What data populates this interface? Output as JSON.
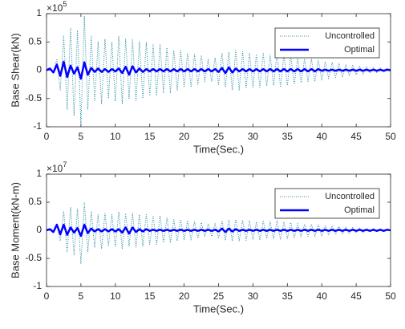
{
  "chart_data": [
    {
      "type": "line",
      "ylabel": "Base Shear(kN)",
      "xlabel": "Time(Sec.)",
      "y_exponent": {
        "base": "×10",
        "power": "5"
      },
      "xlim": [
        0,
        50
      ],
      "ylim": [
        -1,
        1
      ],
      "xticks": [
        0,
        5,
        10,
        15,
        20,
        25,
        30,
        35,
        40,
        45,
        50
      ],
      "yticks": [
        -1,
        -0.5,
        0,
        0.5,
        1
      ],
      "grid": false,
      "legend": "upper right",
      "x": [
        0,
        0.5,
        1,
        1.5,
        2,
        2.5,
        3,
        3.5,
        4,
        4.5,
        5,
        5.5,
        6,
        6.5,
        7,
        7.5,
        8,
        8.5,
        9,
        9.5,
        10,
        10.5,
        11,
        11.5,
        12,
        12.5,
        13,
        13.5,
        14,
        14.5,
        15,
        15.5,
        16,
        16.5,
        17,
        17.5,
        18,
        18.5,
        19,
        19.5,
        20,
        20.5,
        21,
        21.5,
        22,
        22.5,
        23,
        23.5,
        24,
        24.5,
        25,
        25.5,
        26,
        26.5,
        27,
        27.5,
        28,
        28.5,
        29,
        29.5,
        30,
        30.5,
        31,
        31.5,
        32,
        32.5,
        33,
        33.5,
        34,
        34.5,
        35,
        35.5,
        36,
        36.5,
        37,
        37.5,
        38,
        38.5,
        39,
        39.5,
        40,
        40.5,
        41,
        41.5,
        42,
        42.5,
        43,
        43.5,
        44,
        44.5,
        45,
        45.5,
        46,
        46.5,
        47,
        47.5,
        48,
        48.5,
        49,
        49.5,
        50
      ],
      "series": [
        {
          "name": "Uncontrolled",
          "color": "#2b8ea3",
          "linestyle": "dotted",
          "linewidth": 1,
          "values": [
            0,
            0.02,
            -0.05,
            0.2,
            -0.35,
            0.6,
            -0.7,
            0.75,
            -0.8,
            0.7,
            -0.95,
            0.95,
            -0.7,
            0.6,
            -0.55,
            0.5,
            -0.6,
            0.55,
            -0.5,
            0.5,
            -0.55,
            0.6,
            -0.6,
            0.55,
            -0.5,
            0.55,
            -0.55,
            0.5,
            -0.5,
            0.5,
            -0.45,
            0.45,
            -0.45,
            0.45,
            -0.4,
            0.4,
            -0.4,
            0.35,
            -0.35,
            0.35,
            -0.3,
            0.3,
            -0.3,
            0.28,
            -0.25,
            0.25,
            -0.2,
            0.2,
            -0.2,
            0.22,
            -0.25,
            0.3,
            -0.3,
            0.32,
            -0.35,
            0.35,
            -0.35,
            0.33,
            -0.32,
            0.3,
            -0.3,
            0.28,
            -0.3,
            0.3,
            -0.28,
            0.27,
            -0.27,
            0.3,
            -0.3,
            0.28,
            -0.27,
            0.25,
            -0.25,
            0.22,
            -0.22,
            0.2,
            -0.2,
            0.2,
            -0.2,
            0.18,
            -0.18,
            0.15,
            -0.15,
            0.14,
            -0.13,
            0.12,
            -0.12,
            0.1,
            -0.1,
            0.09,
            -0.08,
            0.07,
            -0.07,
            0.06,
            -0.05,
            0.05,
            -0.04,
            0.04,
            -0.03,
            0.03,
            -0.02
          ]
        },
        {
          "name": "Optimal",
          "color": "#0000ff",
          "linestyle": "solid",
          "linewidth": 2.5,
          "values": [
            0,
            0.03,
            -0.04,
            0.1,
            -0.1,
            0.15,
            -0.12,
            0.08,
            -0.06,
            0.05,
            -0.15,
            0.14,
            -0.08,
            0.04,
            -0.03,
            0.03,
            -0.03,
            0.02,
            -0.03,
            0.02,
            -0.02,
            0.03,
            -0.05,
            0.06,
            -0.08,
            0.07,
            -0.04,
            0.03,
            -0.03,
            0.02,
            -0.02,
            0.02,
            -0.02,
            0.02,
            -0.02,
            0.02,
            -0.02,
            0.02,
            -0.02,
            0.02,
            -0.02,
            0.02,
            -0.02,
            0.02,
            -0.02,
            0.02,
            -0.02,
            0.02,
            -0.02,
            0.02,
            -0.03,
            0.04,
            -0.05,
            0.05,
            -0.04,
            0.03,
            -0.02,
            0.02,
            -0.02,
            0.02,
            -0.02,
            0.02,
            -0.02,
            0.02,
            -0.02,
            0.02,
            -0.02,
            0.02,
            -0.02,
            0.02,
            -0.02,
            0.02,
            -0.02,
            0.02,
            -0.02,
            0.02,
            -0.02,
            0.02,
            -0.02,
            0.02,
            -0.01,
            0.01,
            -0.01,
            0.01,
            -0.01,
            0.01,
            -0.01,
            0.01,
            -0.01,
            0.01,
            -0.01,
            0.01,
            -0.01,
            0.01,
            -0.01,
            0.01,
            -0.01,
            0.01,
            -0.01,
            0.01,
            0
          ]
        }
      ]
    },
    {
      "type": "line",
      "ylabel": "Base Moment(kN-m)",
      "xlabel": "Time(Sec.)",
      "y_exponent": {
        "base": "×10",
        "power": "7"
      },
      "xlim": [
        0,
        50
      ],
      "ylim": [
        -1,
        1
      ],
      "xticks": [
        0,
        5,
        10,
        15,
        20,
        25,
        30,
        35,
        40,
        45,
        50
      ],
      "yticks": [
        -1,
        -0.5,
        0,
        0.5,
        1
      ],
      "grid": false,
      "legend": "upper right",
      "x": [
        0,
        0.5,
        1,
        1.5,
        2,
        2.5,
        3,
        3.5,
        4,
        4.5,
        5,
        5.5,
        6,
        6.5,
        7,
        7.5,
        8,
        8.5,
        9,
        9.5,
        10,
        10.5,
        11,
        11.5,
        12,
        12.5,
        13,
        13.5,
        14,
        14.5,
        15,
        15.5,
        16,
        16.5,
        17,
        17.5,
        18,
        18.5,
        19,
        19.5,
        20,
        20.5,
        21,
        21.5,
        22,
        22.5,
        23,
        23.5,
        24,
        24.5,
        25,
        25.5,
        26,
        26.5,
        27,
        27.5,
        28,
        28.5,
        29,
        29.5,
        30,
        30.5,
        31,
        31.5,
        32,
        32.5,
        33,
        33.5,
        34,
        34.5,
        35,
        35.5,
        36,
        36.5,
        37,
        37.5,
        38,
        38.5,
        39,
        39.5,
        40,
        40.5,
        41,
        41.5,
        42,
        42.5,
        43,
        43.5,
        44,
        44.5,
        45,
        45.5,
        46,
        46.5,
        47,
        47.5,
        48,
        48.5,
        49,
        49.5,
        50
      ],
      "series": [
        {
          "name": "Uncontrolled",
          "color": "#2b8ea3",
          "linestyle": "dotted",
          "linewidth": 1,
          "values": [
            0,
            0.01,
            -0.03,
            0.11,
            -0.19,
            0.33,
            -0.38,
            0.41,
            -0.44,
            0.38,
            -0.6,
            0.5,
            -0.38,
            0.33,
            -0.3,
            0.28,
            -0.33,
            0.3,
            -0.28,
            0.28,
            -0.3,
            0.33,
            -0.33,
            0.3,
            -0.28,
            0.3,
            -0.3,
            0.28,
            -0.28,
            0.28,
            -0.25,
            0.25,
            -0.25,
            0.25,
            -0.22,
            0.22,
            -0.22,
            0.19,
            -0.19,
            0.19,
            -0.17,
            0.17,
            -0.17,
            0.15,
            -0.14,
            0.14,
            -0.11,
            0.11,
            -0.11,
            0.12,
            -0.14,
            0.17,
            -0.17,
            0.18,
            -0.19,
            0.19,
            -0.19,
            0.18,
            -0.18,
            0.17,
            -0.17,
            0.15,
            -0.17,
            0.17,
            -0.15,
            0.15,
            -0.15,
            0.17,
            -0.17,
            0.15,
            -0.15,
            0.14,
            -0.14,
            0.12,
            -0.12,
            0.11,
            -0.11,
            0.11,
            -0.11,
            0.1,
            -0.1,
            0.08,
            -0.08,
            0.08,
            -0.07,
            0.07,
            -0.07,
            0.06,
            -0.06,
            0.05,
            -0.04,
            0.04,
            -0.04,
            0.03,
            -0.02,
            0.03,
            -0.02,
            0.02,
            -0.02,
            0.02,
            -0.01
          ]
        },
        {
          "name": "Optimal",
          "color": "#0000ff",
          "linestyle": "solid",
          "linewidth": 2.5,
          "values": [
            0,
            0.02,
            -0.03,
            0.1,
            -0.07,
            0.1,
            -0.08,
            0.05,
            -0.04,
            0.04,
            -0.1,
            0.1,
            -0.05,
            0.03,
            -0.02,
            0.02,
            -0.02,
            0.02,
            -0.02,
            0.02,
            -0.02,
            0.02,
            -0.04,
            0.05,
            -0.06,
            0.05,
            -0.03,
            0.02,
            -0.02,
            0.02,
            -0.01,
            0.01,
            -0.01,
            0.01,
            -0.01,
            0.01,
            -0.01,
            0.01,
            -0.01,
            0.01,
            -0.01,
            0.01,
            -0.01,
            0.01,
            -0.01,
            0.01,
            -0.01,
            0.01,
            -0.01,
            0.01,
            -0.02,
            0.03,
            -0.03,
            0.03,
            -0.02,
            0.02,
            -0.01,
            0.01,
            -0.01,
            0.01,
            -0.01,
            0.01,
            -0.01,
            0.01,
            -0.01,
            0.01,
            -0.01,
            0.01,
            -0.01,
            0.01,
            -0.01,
            0.01,
            -0.01,
            0.01,
            -0.01,
            0.01,
            -0.01,
            0.01,
            -0.01,
            0.01,
            -0.01,
            0.01,
            -0.01,
            0.01,
            -0.01,
            0.01,
            -0.01,
            0.01,
            -0.01,
            0.01,
            -0.01,
            0.01,
            -0.01,
            0.01,
            -0.01,
            0.01,
            -0.01,
            0.01,
            -0.01,
            0.01,
            0
          ]
        }
      ]
    }
  ]
}
